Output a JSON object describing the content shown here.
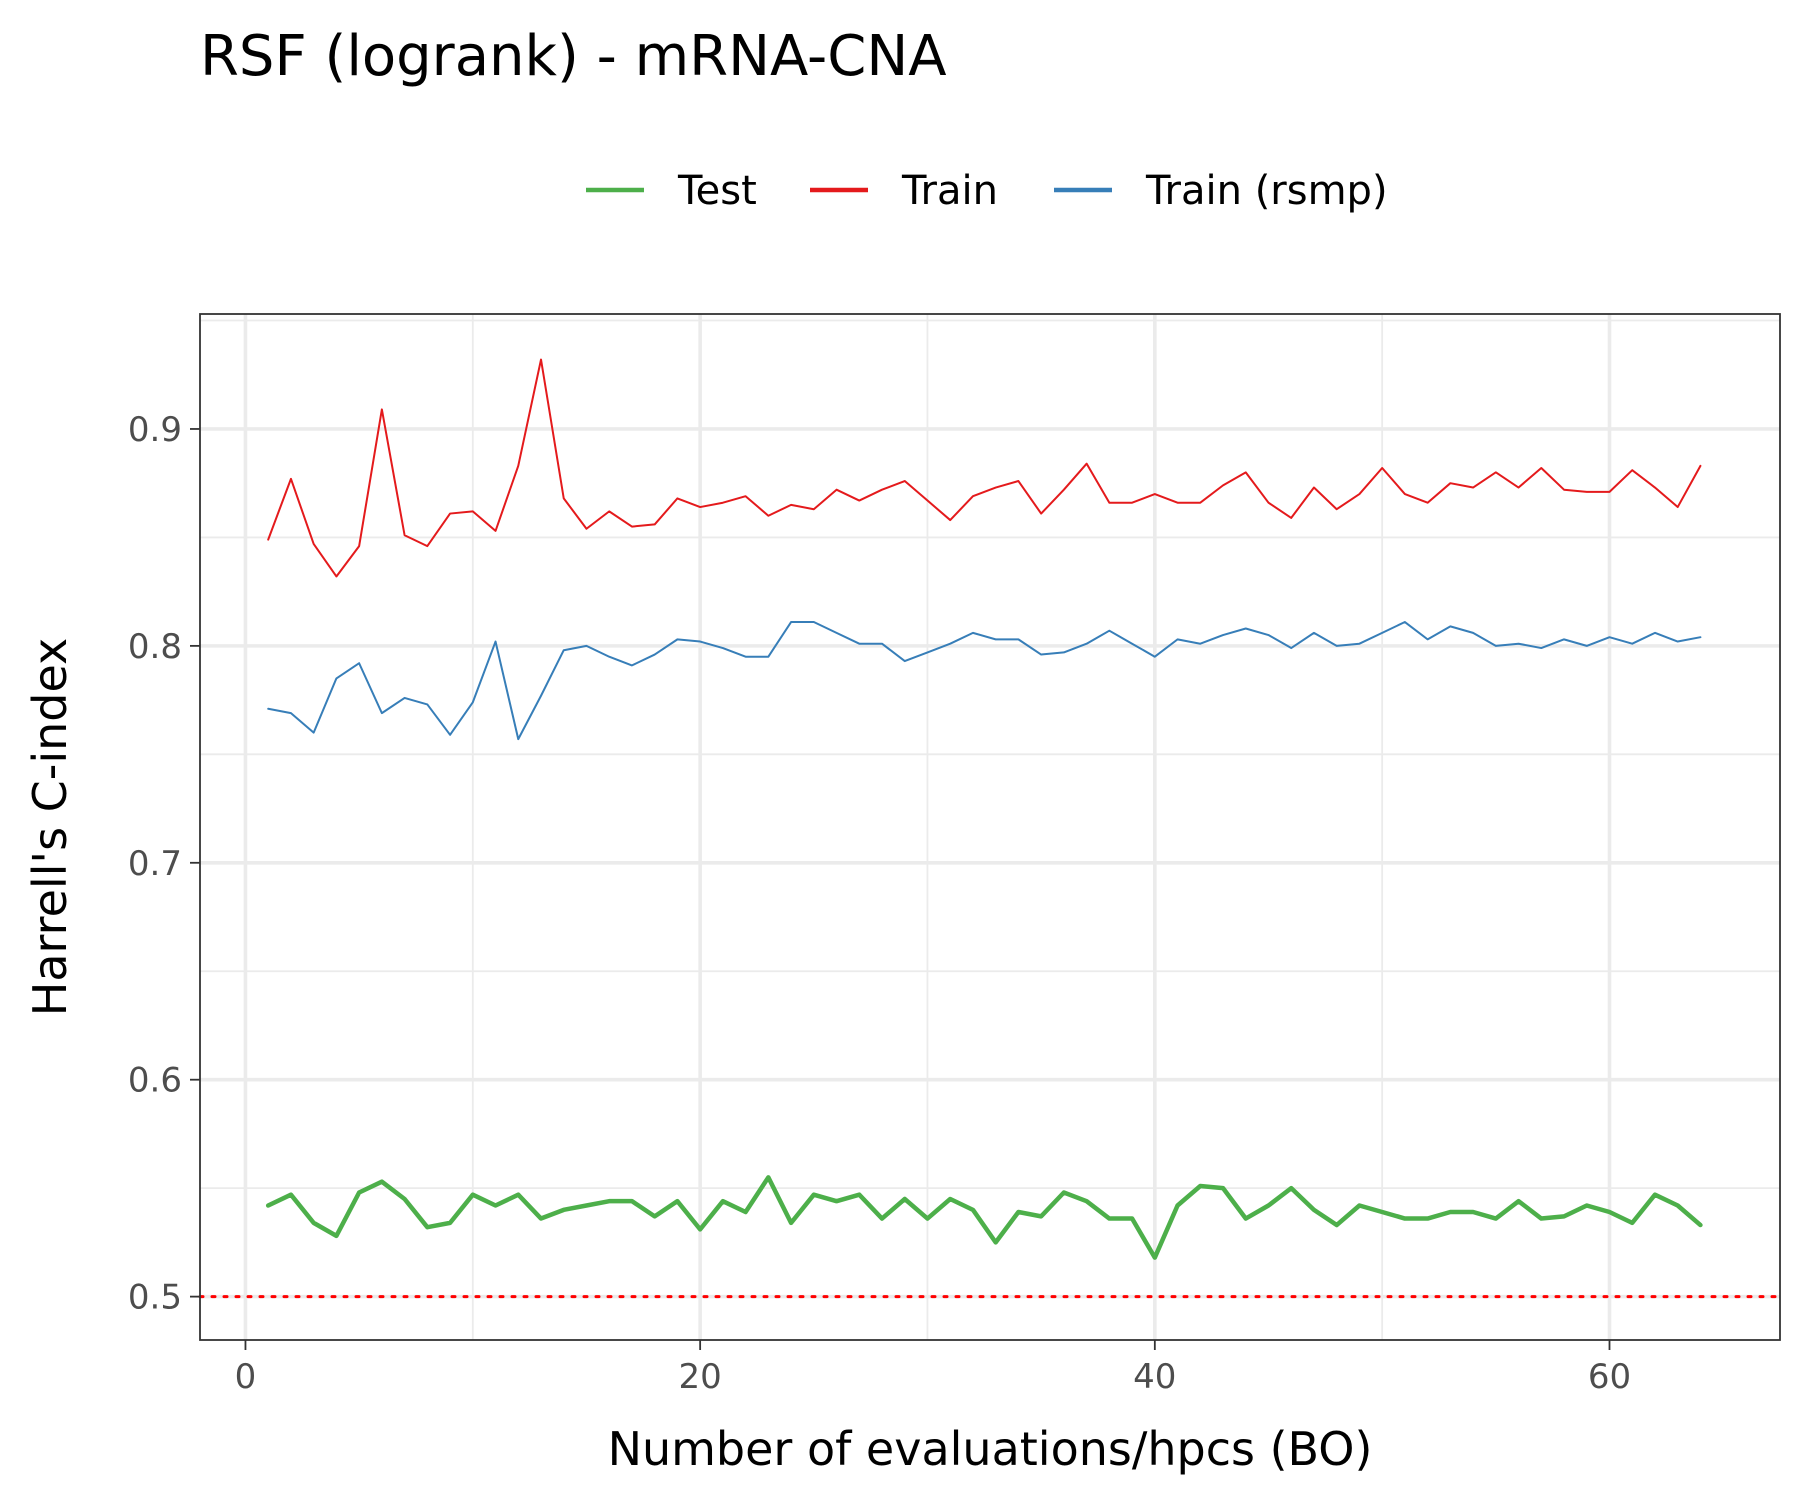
{
  "chart_data": {
    "type": "line",
    "title": "RSF (logrank) - mRNA-CNA",
    "xlabel": "Number of evaluations/hpcs (BO)",
    "ylabel": "Harrell's C-index",
    "xlim": [
      -2,
      67.5
    ],
    "ylim": [
      0.48,
      0.953
    ],
    "x_ticks": [
      0,
      20,
      40,
      60
    ],
    "x_tick_labels": [
      "0",
      "20",
      "40",
      "60"
    ],
    "y_ticks": [
      0.5,
      0.6,
      0.7,
      0.8,
      0.9
    ],
    "y_tick_labels": [
      "0.5",
      "0.6",
      "0.7",
      "0.8",
      "0.9"
    ],
    "grid": true,
    "legend_position": "top",
    "reference_line": {
      "y": 0.5,
      "style": "dotted",
      "color": "#ff0000"
    },
    "x": [
      1,
      2,
      3,
      4,
      5,
      6,
      7,
      8,
      9,
      10,
      11,
      12,
      13,
      14,
      15,
      16,
      17,
      18,
      19,
      20,
      21,
      22,
      23,
      24,
      25,
      26,
      27,
      28,
      29,
      30,
      31,
      32,
      33,
      34,
      35,
      36,
      37,
      38,
      39,
      40,
      41,
      42,
      43,
      44,
      45,
      46,
      47,
      48,
      49,
      50,
      51,
      52,
      53,
      54,
      55,
      56,
      57,
      58,
      59,
      60,
      61,
      62,
      63,
      64
    ],
    "series": [
      {
        "name": "Test",
        "color": "#4daf4a",
        "width": 4.5,
        "values": [
          0.542,
          0.547,
          0.534,
          0.528,
          0.548,
          0.553,
          0.545,
          0.532,
          0.534,
          0.547,
          0.542,
          0.547,
          0.536,
          0.54,
          0.542,
          0.544,
          0.544,
          0.537,
          0.544,
          0.531,
          0.544,
          0.539,
          0.555,
          0.534,
          0.547,
          0.544,
          0.547,
          0.536,
          0.545,
          0.536,
          0.545,
          0.54,
          0.525,
          0.539,
          0.537,
          0.548,
          0.544,
          0.536,
          0.536,
          0.518,
          0.542,
          0.551,
          0.55,
          0.536,
          0.542,
          0.55,
          0.54,
          0.533,
          0.542,
          0.539,
          0.536,
          0.536,
          0.539,
          0.539,
          0.536,
          0.544,
          0.536,
          0.537,
          0.542,
          0.539,
          0.534,
          0.547,
          0.542,
          0.533
        ]
      },
      {
        "name": "Train",
        "color": "#e41a1c",
        "width": 2,
        "values": [
          0.849,
          0.877,
          0.847,
          0.832,
          0.846,
          0.909,
          0.851,
          0.846,
          0.861,
          0.862,
          0.853,
          0.883,
          0.932,
          0.868,
          0.854,
          0.862,
          0.855,
          0.856,
          0.868,
          0.864,
          0.866,
          0.869,
          0.86,
          0.865,
          0.863,
          0.872,
          0.867,
          0.872,
          0.876,
          0.867,
          0.858,
          0.869,
          0.873,
          0.876,
          0.861,
          0.872,
          0.884,
          0.866,
          0.866,
          0.87,
          0.866,
          0.866,
          0.874,
          0.88,
          0.866,
          0.859,
          0.873,
          0.863,
          0.87,
          0.882,
          0.87,
          0.866,
          0.875,
          0.873,
          0.88,
          0.873,
          0.882,
          0.872,
          0.871,
          0.871,
          0.881,
          0.873,
          0.864,
          0.883
        ]
      },
      {
        "name": "Train (rsmp)",
        "color": "#377eb8",
        "width": 2,
        "values": [
          0.771,
          0.769,
          0.76,
          0.785,
          0.792,
          0.769,
          0.776,
          0.773,
          0.759,
          0.774,
          0.802,
          0.757,
          0.777,
          0.798,
          0.8,
          0.795,
          0.791,
          0.796,
          0.803,
          0.802,
          0.799,
          0.795,
          0.795,
          0.811,
          0.811,
          0.806,
          0.801,
          0.801,
          0.793,
          0.797,
          0.801,
          0.806,
          0.803,
          0.803,
          0.796,
          0.797,
          0.801,
          0.807,
          0.801,
          0.795,
          0.803,
          0.801,
          0.805,
          0.808,
          0.805,
          0.799,
          0.806,
          0.8,
          0.801,
          0.806,
          0.811,
          0.803,
          0.809,
          0.806,
          0.8,
          0.801,
          0.799,
          0.803,
          0.8,
          0.804,
          0.801,
          0.806,
          0.802,
          0.804
        ]
      }
    ]
  }
}
